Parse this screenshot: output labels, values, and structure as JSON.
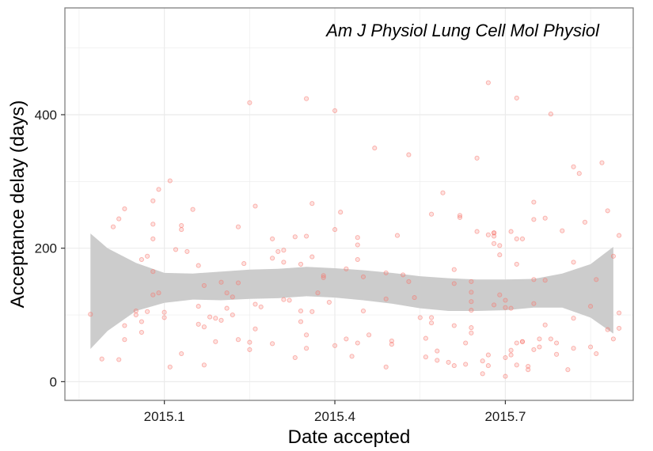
{
  "chart_data": {
    "type": "scatter",
    "title": "Am J Physiol Lung Cell Mol Physiol",
    "xlabel": "Date accepted",
    "ylabel": "Acceptance delay (days)",
    "xlim": [
      2014.925,
      2015.925
    ],
    "ylim": [
      -28,
      560
    ],
    "x_ticks": [
      2015.1,
      2015.4,
      2015.7
    ],
    "x_tick_labels": [
      "2015.1",
      "2015.4",
      "2015.7"
    ],
    "y_ticks": [
      0,
      200,
      400
    ],
    "y_tick_labels": [
      "0",
      "200",
      "400"
    ],
    "grid": true,
    "colors": {
      "points": "#f8766d",
      "ribbon": "#cccccc",
      "panel_border": "#7f7f7f",
      "grid": "#ebebeb"
    },
    "smooth_band": {
      "x": [
        2014.97,
        2015.0,
        2015.05,
        2015.1,
        2015.15,
        2015.2,
        2015.25,
        2015.3,
        2015.35,
        2015.4,
        2015.45,
        2015.5,
        2015.55,
        2015.6,
        2015.65,
        2015.7,
        2015.75,
        2015.8,
        2015.85,
        2015.89
      ],
      "upper": [
        222,
        200,
        178,
        163,
        162,
        165,
        168,
        169,
        172,
        170,
        167,
        163,
        158,
        155,
        153,
        153,
        154,
        162,
        176,
        202
      ],
      "lower": [
        49,
        76,
        106,
        118,
        123,
        122,
        124,
        125,
        128,
        126,
        122,
        117,
        110,
        106,
        106,
        107,
        111,
        111,
        96,
        72
      ]
    },
    "points": [
      [
        2014.97,
        101
      ],
      [
        2014.99,
        34
      ],
      [
        2015.01,
        232
      ],
      [
        2015.02,
        244
      ],
      [
        2015.02,
        33
      ],
      [
        2015.03,
        259
      ],
      [
        2015.03,
        84
      ],
      [
        2015.03,
        63
      ],
      [
        2015.05,
        106
      ],
      [
        2015.05,
        100
      ],
      [
        2015.06,
        74
      ],
      [
        2015.06,
        183
      ],
      [
        2015.06,
        90
      ],
      [
        2015.07,
        188
      ],
      [
        2015.07,
        105
      ],
      [
        2015.08,
        271
      ],
      [
        2015.08,
        214
      ],
      [
        2015.08,
        236
      ],
      [
        2015.08,
        130
      ],
      [
        2015.08,
        165
      ],
      [
        2015.09,
        288
      ],
      [
        2015.09,
        133
      ],
      [
        2015.1,
        96
      ],
      [
        2015.1,
        104
      ],
      [
        2015.11,
        301
      ],
      [
        2015.11,
        22
      ],
      [
        2015.12,
        198
      ],
      [
        2015.13,
        228
      ],
      [
        2015.13,
        234
      ],
      [
        2015.13,
        42
      ],
      [
        2015.14,
        195
      ],
      [
        2015.15,
        258
      ],
      [
        2015.16,
        174
      ],
      [
        2015.16,
        113
      ],
      [
        2015.16,
        86
      ],
      [
        2015.17,
        144
      ],
      [
        2015.17,
        82
      ],
      [
        2015.17,
        25
      ],
      [
        2015.18,
        97
      ],
      [
        2015.19,
        95
      ],
      [
        2015.19,
        60
      ],
      [
        2015.2,
        149
      ],
      [
        2015.2,
        92
      ],
      [
        2015.21,
        133
      ],
      [
        2015.21,
        110
      ],
      [
        2015.22,
        127
      ],
      [
        2015.22,
        100
      ],
      [
        2015.23,
        148
      ],
      [
        2015.23,
        232
      ],
      [
        2015.23,
        63
      ],
      [
        2015.24,
        177
      ],
      [
        2015.25,
        59
      ],
      [
        2015.25,
        48
      ],
      [
        2015.25,
        418
      ],
      [
        2015.26,
        263
      ],
      [
        2015.26,
        116
      ],
      [
        2015.26,
        79
      ],
      [
        2015.27,
        112
      ],
      [
        2015.29,
        185
      ],
      [
        2015.29,
        214
      ],
      [
        2015.29,
        57
      ],
      [
        2015.3,
        195
      ],
      [
        2015.31,
        197
      ],
      [
        2015.31,
        179
      ],
      [
        2015.31,
        123
      ],
      [
        2015.32,
        122
      ],
      [
        2015.33,
        217
      ],
      [
        2015.33,
        36
      ],
      [
        2015.34,
        176
      ],
      [
        2015.34,
        106
      ],
      [
        2015.34,
        90
      ],
      [
        2015.35,
        424
      ],
      [
        2015.35,
        218
      ],
      [
        2015.35,
        70
      ],
      [
        2015.35,
        50
      ],
      [
        2015.36,
        267
      ],
      [
        2015.36,
        187
      ],
      [
        2015.36,
        105
      ],
      [
        2015.37,
        133
      ],
      [
        2015.38,
        156
      ],
      [
        2015.38,
        159
      ],
      [
        2015.39,
        119
      ],
      [
        2015.4,
        228
      ],
      [
        2015.4,
        406
      ],
      [
        2015.4,
        54
      ],
      [
        2015.41,
        254
      ],
      [
        2015.42,
        169
      ],
      [
        2015.42,
        64
      ],
      [
        2015.43,
        38
      ],
      [
        2015.44,
        183
      ],
      [
        2015.44,
        205
      ],
      [
        2015.44,
        216
      ],
      [
        2015.44,
        58
      ],
      [
        2015.45,
        106
      ],
      [
        2015.45,
        157
      ],
      [
        2015.46,
        70
      ],
      [
        2015.47,
        350
      ],
      [
        2015.49,
        124
      ],
      [
        2015.49,
        163
      ],
      [
        2015.49,
        22
      ],
      [
        2015.5,
        56
      ],
      [
        2015.5,
        61
      ],
      [
        2015.51,
        219
      ],
      [
        2015.52,
        160
      ],
      [
        2015.53,
        340
      ],
      [
        2015.53,
        150
      ],
      [
        2015.54,
        126
      ],
      [
        2015.55,
        96
      ],
      [
        2015.56,
        65
      ],
      [
        2015.56,
        37
      ],
      [
        2015.57,
        96
      ],
      [
        2015.57,
        88
      ],
      [
        2015.57,
        251
      ],
      [
        2015.58,
        32
      ],
      [
        2015.58,
        46
      ],
      [
        2015.59,
        283
      ],
      [
        2015.6,
        29
      ],
      [
        2015.61,
        147
      ],
      [
        2015.61,
        168
      ],
      [
        2015.61,
        84
      ],
      [
        2015.61,
        24
      ],
      [
        2015.62,
        246
      ],
      [
        2015.62,
        249
      ],
      [
        2015.63,
        26
      ],
      [
        2015.63,
        58
      ],
      [
        2015.64,
        73
      ],
      [
        2015.64,
        81
      ],
      [
        2015.64,
        107
      ],
      [
        2015.64,
        120
      ],
      [
        2015.64,
        134
      ],
      [
        2015.64,
        150
      ],
      [
        2015.65,
        225
      ],
      [
        2015.65,
        335
      ],
      [
        2015.66,
        31
      ],
      [
        2015.66,
        12
      ],
      [
        2015.67,
        448
      ],
      [
        2015.67,
        220
      ],
      [
        2015.67,
        40
      ],
      [
        2015.67,
        24
      ],
      [
        2015.68,
        223
      ],
      [
        2015.68,
        223
      ],
      [
        2015.68,
        218
      ],
      [
        2015.68,
        207
      ],
      [
        2015.68,
        115
      ],
      [
        2015.69,
        130
      ],
      [
        2015.69,
        190
      ],
      [
        2015.69,
        204
      ],
      [
        2015.7,
        111
      ],
      [
        2015.7,
        36
      ],
      [
        2015.7,
        8
      ],
      [
        2015.7,
        122
      ],
      [
        2015.71,
        110
      ],
      [
        2015.71,
        225
      ],
      [
        2015.71,
        47
      ],
      [
        2015.71,
        40
      ],
      [
        2015.72,
        25
      ],
      [
        2015.72,
        58
      ],
      [
        2015.72,
        425
      ],
      [
        2015.72,
        214
      ],
      [
        2015.72,
        176
      ],
      [
        2015.73,
        60
      ],
      [
        2015.73,
        214
      ],
      [
        2015.73,
        60
      ],
      [
        2015.74,
        23
      ],
      [
        2015.74,
        18
      ],
      [
        2015.75,
        269
      ],
      [
        2015.75,
        243
      ],
      [
        2015.75,
        153
      ],
      [
        2015.75,
        117
      ],
      [
        2015.75,
        48
      ],
      [
        2015.76,
        64
      ],
      [
        2015.76,
        52
      ],
      [
        2015.77,
        245
      ],
      [
        2015.77,
        152
      ],
      [
        2015.77,
        85
      ],
      [
        2015.78,
        401
      ],
      [
        2015.78,
        64
      ],
      [
        2015.79,
        41
      ],
      [
        2015.79,
        58
      ],
      [
        2015.8,
        226
      ],
      [
        2015.81,
        18
      ],
      [
        2015.82,
        322
      ],
      [
        2015.82,
        179
      ],
      [
        2015.82,
        95
      ],
      [
        2015.82,
        50
      ],
      [
        2015.83,
        312
      ],
      [
        2015.84,
        239
      ],
      [
        2015.85,
        113
      ],
      [
        2015.85,
        52
      ],
      [
        2015.86,
        42
      ],
      [
        2015.86,
        153
      ],
      [
        2015.87,
        328
      ],
      [
        2015.88,
        256
      ],
      [
        2015.88,
        78
      ],
      [
        2015.89,
        188
      ],
      [
        2015.89,
        64
      ],
      [
        2015.9,
        219
      ],
      [
        2015.9,
        103
      ],
      [
        2015.9,
        80
      ]
    ]
  }
}
